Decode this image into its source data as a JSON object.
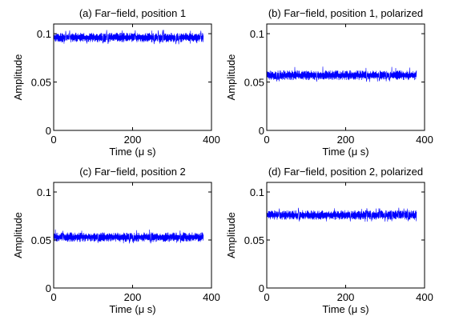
{
  "figure": {
    "colors": {
      "signal": "#0000ff",
      "axes": "#000000",
      "background": "#ffffff"
    }
  },
  "chart_data": [
    {
      "type": "line",
      "title": "(a) Far−field, position 1",
      "xlabel": "Time (μ s)",
      "ylabel": "Amplitude",
      "xlim": [
        0,
        400
      ],
      "ylim": [
        0,
        0.11
      ],
      "xticks": [
        0,
        200,
        400
      ],
      "xtick_labels": [
        "0",
        "200",
        "400"
      ],
      "yticks": [
        0,
        0.05,
        0.1
      ],
      "ytick_labels": [
        "0",
        "0.05",
        "0.1"
      ],
      "grid": false,
      "series": [
        {
          "x_range": [
            0,
            380
          ],
          "mean": 0.096,
          "band": [
            0.091,
            0.101
          ],
          "peak": [
            0.089,
            0.104
          ]
        }
      ]
    },
    {
      "type": "line",
      "title": "(b) Far−field, position 1, polarized",
      "xlabel": "Time (μ s)",
      "ylabel": "Amplitude",
      "xlim": [
        0,
        400
      ],
      "ylim": [
        0,
        0.11
      ],
      "xticks": [
        0,
        200,
        400
      ],
      "xtick_labels": [
        "0",
        "200",
        "400"
      ],
      "yticks": [
        0,
        0.05,
        0.1
      ],
      "ytick_labels": [
        "0",
        "0.05",
        "0.1"
      ],
      "grid": false,
      "series": [
        {
          "x_range": [
            0,
            380
          ],
          "mean": 0.057,
          "band": [
            0.052,
            0.062
          ],
          "peak": [
            0.05,
            0.066
          ]
        }
      ]
    },
    {
      "type": "line",
      "title": "(c) Far−field, position 2",
      "xlabel": "Time (μ s)",
      "ylabel": "Amplitude",
      "xlim": [
        0,
        400
      ],
      "ylim": [
        0,
        0.11
      ],
      "xticks": [
        0,
        200,
        400
      ],
      "xtick_labels": [
        "0",
        "200",
        "400"
      ],
      "yticks": [
        0,
        0.05,
        0.1
      ],
      "ytick_labels": [
        "0",
        "0.05",
        "0.1"
      ],
      "grid": false,
      "series": [
        {
          "x_range": [
            0,
            380
          ],
          "mean": 0.053,
          "band": [
            0.048,
            0.058
          ],
          "peak": [
            0.046,
            0.061
          ]
        }
      ]
    },
    {
      "type": "line",
      "title": "(d) Far−field, position 2, polarized",
      "xlabel": "Time (μ s)",
      "ylabel": "Amplitude",
      "xlim": [
        0,
        400
      ],
      "ylim": [
        0,
        0.11
      ],
      "xticks": [
        0,
        200,
        400
      ],
      "xtick_labels": [
        "0",
        "200",
        "400"
      ],
      "yticks": [
        0,
        0.05,
        0.1
      ],
      "ytick_labels": [
        "0",
        "0.05",
        "0.1"
      ],
      "grid": false,
      "series": [
        {
          "x_range": [
            0,
            380
          ],
          "mean": 0.076,
          "band": [
            0.071,
            0.081
          ],
          "peak": [
            0.069,
            0.084
          ]
        }
      ]
    }
  ]
}
